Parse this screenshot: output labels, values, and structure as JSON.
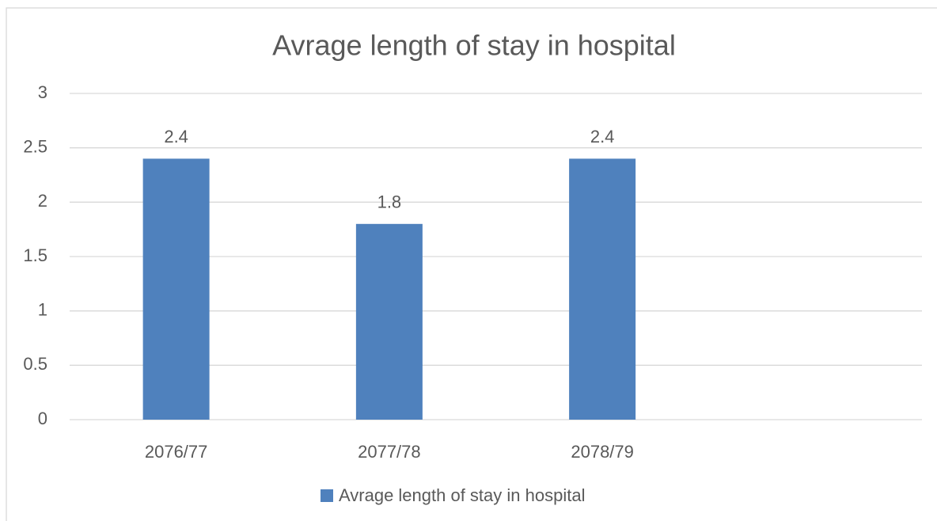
{
  "chart_data": {
    "type": "bar",
    "title": "Avrage length of stay in hospital",
    "categories": [
      "2076/77",
      "2077/78",
      "2078/79",
      null
    ],
    "series": [
      {
        "name": "Avrage length of stay in hospital",
        "color": "#4f81bd",
        "values": [
          2.4,
          1.8,
          2.4,
          null
        ]
      }
    ],
    "ylim": [
      0,
      3
    ],
    "yticks": [
      0,
      0.5,
      1,
      1.5,
      2,
      2.5,
      3
    ],
    "grid": true,
    "legend": "bottom"
  }
}
